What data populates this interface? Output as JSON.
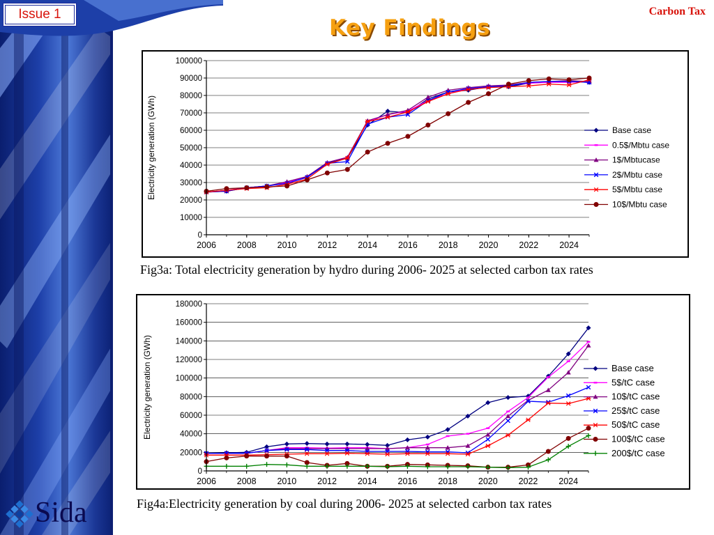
{
  "header": {
    "issue_label": "Issue 1",
    "corner_label": "Carbon Tax",
    "title": "Key Findings"
  },
  "colors": {
    "title": "#f6a011",
    "accent_red": "#d8140c",
    "side_band": "#1d3fa8"
  },
  "logo": {
    "text": "Sida"
  },
  "captions": {
    "fig3a": "Fig3a: Total electricity generation by hydro during 2006- 2025 at selected carbon tax  rates",
    "fig4a": "Fig4a:Electricity generation by coal during 2006- 2025 at selected carbon tax  rates"
  },
  "chart_data": [
    {
      "type": "line",
      "ylabel": "Electricity generation (GWh)",
      "ylim": [
        0,
        100000
      ],
      "yticks": [
        0,
        10000,
        20000,
        30000,
        40000,
        50000,
        60000,
        70000,
        80000,
        90000,
        100000
      ],
      "xlim": [
        2006,
        2025
      ],
      "xticks": [
        2006,
        2008,
        2010,
        2012,
        2014,
        2016,
        2018,
        2020,
        2022,
        2024
      ],
      "legend_position": "right",
      "x": [
        2006,
        2007,
        2008,
        2009,
        2010,
        2011,
        2012,
        2013,
        2014,
        2015,
        2016,
        2017,
        2018,
        2019,
        2020,
        2021,
        2022,
        2023,
        2024,
        2025
      ],
      "series": [
        {
          "name": "Base case",
          "color": "#000080",
          "marker": "diamond",
          "values": [
            24500,
            25000,
            27000,
            28000,
            30000,
            33000,
            41000,
            44000,
            63000,
            71000,
            70000,
            78000,
            82000,
            83000,
            85000,
            85000,
            87000,
            88000,
            88000,
            87500
          ]
        },
        {
          "name": "0.5$/Mbtu case",
          "color": "#ff00ff",
          "marker": "square",
          "values": [
            24500,
            25500,
            27000,
            28000,
            30000,
            33000,
            41500,
            44500,
            65000,
            69000,
            71000,
            77000,
            81000,
            84000,
            85000,
            86000,
            87000,
            87500,
            87500,
            88000
          ]
        },
        {
          "name": "1$/Mbtucase",
          "color": "#800080",
          "marker": "triangle",
          "values": [
            24500,
            25500,
            27000,
            28000,
            30500,
            33500,
            41500,
            44500,
            65500,
            69000,
            71500,
            79000,
            83000,
            84500,
            85500,
            86000,
            87500,
            88000,
            88500,
            88000
          ]
        },
        {
          "name": "2$/Mbtu case",
          "color": "#0000ff",
          "marker": "x",
          "values": [
            24500,
            25000,
            27000,
            28000,
            29500,
            33000,
            41000,
            42000,
            63500,
            67500,
            69000,
            77000,
            82000,
            84000,
            85000,
            85500,
            87500,
            88000,
            88000,
            87500
          ]
        },
        {
          "name": "5$/Mbtu case",
          "color": "#ff0000",
          "marker": "asterisk",
          "values": [
            24500,
            25500,
            26500,
            27000,
            29000,
            32000,
            40500,
            44000,
            65000,
            67500,
            70500,
            76500,
            81000,
            83500,
            84500,
            85000,
            85500,
            86500,
            86000,
            89000
          ]
        },
        {
          "name": "10$/Mbtu case",
          "color": "#800000",
          "marker": "circle",
          "values": [
            25000,
            26500,
            27000,
            27500,
            28000,
            31500,
            35500,
            37500,
            47500,
            52500,
            56500,
            63000,
            69500,
            76000,
            81000,
            86500,
            88500,
            89500,
            89000,
            90000
          ]
        }
      ]
    },
    {
      "type": "line",
      "ylabel": "Electricity generation (GWh)",
      "ylim": [
        0,
        180000
      ],
      "yticks": [
        0,
        20000,
        40000,
        60000,
        80000,
        100000,
        120000,
        140000,
        160000,
        180000
      ],
      "xlim": [
        2006,
        2025
      ],
      "xticks": [
        2006,
        2008,
        2010,
        2012,
        2014,
        2016,
        2018,
        2020,
        2022,
        2024
      ],
      "legend_position": "right",
      "x": [
        2006,
        2007,
        2008,
        2009,
        2010,
        2011,
        2012,
        2013,
        2014,
        2015,
        2016,
        2017,
        2018,
        2019,
        2020,
        2021,
        2022,
        2023,
        2024,
        2025
      ],
      "series": [
        {
          "name": "Base case",
          "color": "#000080",
          "marker": "diamond",
          "values": [
            19000,
            19500,
            20000,
            26000,
            29000,
            29500,
            29000,
            29000,
            28500,
            27500,
            33500,
            36500,
            44500,
            59000,
            73500,
            79000,
            80500,
            102000,
            126000,
            154000
          ]
        },
        {
          "name": "5$/tC case",
          "color": "#ff00ff",
          "marker": "square",
          "values": [
            19000,
            19000,
            19000,
            22000,
            25000,
            25000,
            24500,
            25000,
            25000,
            24000,
            25000,
            28500,
            37500,
            40000,
            46000,
            64000,
            79000,
            101000,
            118000,
            139000
          ]
        },
        {
          "name": "10$/tC case",
          "color": "#800080",
          "marker": "triangle",
          "values": [
            19000,
            19000,
            19000,
            22000,
            24000,
            24000,
            24000,
            24000,
            24000,
            24000,
            25000,
            25000,
            25000,
            27000,
            39000,
            59000,
            76000,
            87000,
            106000,
            135000
          ]
        },
        {
          "name": "25$/tC case",
          "color": "#0000ff",
          "marker": "x",
          "values": [
            19000,
            19000,
            19000,
            22000,
            23000,
            23000,
            22000,
            22000,
            21000,
            21000,
            21000,
            20500,
            20500,
            19500,
            34000,
            54000,
            75000,
            74000,
            81000,
            90000
          ]
        },
        {
          "name": "50$/tC case",
          "color": "#ff0000",
          "marker": "asterisk",
          "values": [
            17000,
            17000,
            17000,
            17500,
            18000,
            18500,
            18500,
            19000,
            18500,
            18000,
            18500,
            18500,
            18500,
            18000,
            27000,
            38500,
            55000,
            73000,
            72500,
            78000
          ]
        },
        {
          "name": "100$/tC case",
          "color": "#800000",
          "marker": "circle",
          "values": [
            10000,
            14000,
            16000,
            16000,
            16000,
            9000,
            6000,
            8000,
            5000,
            5000,
            7000,
            6500,
            6000,
            5500,
            4000,
            4000,
            6500,
            21000,
            35000,
            46000
          ]
        },
        {
          "name": "200$/tC case",
          "color": "#008000",
          "marker": "plus",
          "values": [
            5000,
            5000,
            5000,
            7000,
            6500,
            5000,
            5000,
            5000,
            5000,
            4500,
            5000,
            4500,
            4500,
            4500,
            4000,
            3500,
            4000,
            12000,
            26500,
            38000
          ]
        }
      ]
    }
  ]
}
